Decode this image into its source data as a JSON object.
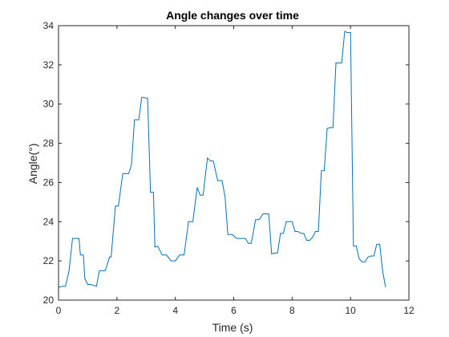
{
  "chart_data": {
    "type": "line",
    "title": "Angle changes over time",
    "xlabel": "Time (s)",
    "ylabel": "Angle(°)",
    "xlim": [
      0,
      12
    ],
    "ylim": [
      20,
      34
    ],
    "xticks": [
      0,
      2,
      4,
      6,
      8,
      10,
      12
    ],
    "yticks": [
      20,
      22,
      24,
      26,
      28,
      30,
      32,
      34
    ],
    "grid": false,
    "series": [
      {
        "color": "#0072bd",
        "x": [
          0.0,
          0.12,
          0.24,
          0.36,
          0.48,
          0.55,
          0.7,
          0.75,
          0.85,
          0.9,
          1.0,
          1.05,
          1.1,
          1.2,
          1.3,
          1.4,
          1.5,
          1.6,
          1.75,
          1.8,
          1.95,
          2.05,
          2.2,
          2.3,
          2.4,
          2.5,
          2.6,
          2.75,
          2.85,
          2.9,
          3.0,
          3.05,
          3.15,
          3.25,
          3.3,
          3.4,
          3.55,
          3.7,
          3.85,
          4.0,
          4.15,
          4.3,
          4.45,
          4.6,
          4.75,
          4.85,
          4.95,
          5.1,
          5.2,
          5.3,
          5.45,
          5.6,
          5.7,
          5.8,
          5.95,
          6.1,
          6.25,
          6.4,
          6.5,
          6.6,
          6.75,
          6.85,
          6.9,
          7.0,
          7.1,
          7.2,
          7.3,
          7.4,
          7.5,
          7.6,
          7.7,
          7.8,
          7.9,
          8.0,
          8.1,
          8.2,
          8.3,
          8.4,
          8.5,
          8.6,
          8.7,
          8.8,
          8.9,
          9.0,
          9.1,
          9.2,
          9.3,
          9.4,
          9.5,
          9.6,
          9.7,
          9.8,
          9.9,
          10.0,
          10.1,
          10.2,
          10.3,
          10.4,
          10.5,
          10.6,
          10.7,
          10.8,
          10.9,
          11.0,
          11.1,
          11.2
        ],
        "y": [
          20.65,
          20.7,
          20.7,
          21.5,
          23.15,
          23.15,
          23.15,
          22.3,
          22.3,
          21.1,
          20.8,
          20.8,
          20.8,
          20.75,
          20.7,
          21.5,
          21.5,
          21.5,
          22.2,
          22.2,
          24.8,
          24.8,
          26.45,
          26.45,
          26.45,
          26.9,
          29.2,
          29.2,
          30.35,
          30.35,
          30.3,
          30.3,
          25.5,
          25.5,
          22.7,
          22.75,
          22.3,
          22.3,
          22.0,
          22.0,
          22.3,
          22.3,
          24.0,
          24.0,
          25.75,
          25.35,
          25.35,
          27.25,
          27.1,
          27.1,
          26.1,
          26.1,
          25.3,
          23.35,
          23.35,
          23.15,
          23.15,
          23.15,
          22.9,
          22.9,
          24.1,
          24.1,
          24.15,
          24.4,
          24.4,
          24.4,
          22.35,
          22.4,
          22.4,
          23.4,
          23.4,
          24.0,
          24.0,
          24.0,
          23.5,
          23.5,
          23.4,
          23.4,
          23.05,
          23.05,
          23.2,
          23.5,
          23.5,
          26.6,
          26.6,
          28.75,
          28.8,
          28.8,
          32.1,
          32.1,
          32.1,
          33.7,
          33.65,
          33.65,
          22.75,
          22.75,
          22.1,
          21.95,
          21.95,
          22.2,
          22.25,
          22.25,
          22.85,
          22.85,
          21.5,
          20.65
        ]
      }
    ]
  }
}
